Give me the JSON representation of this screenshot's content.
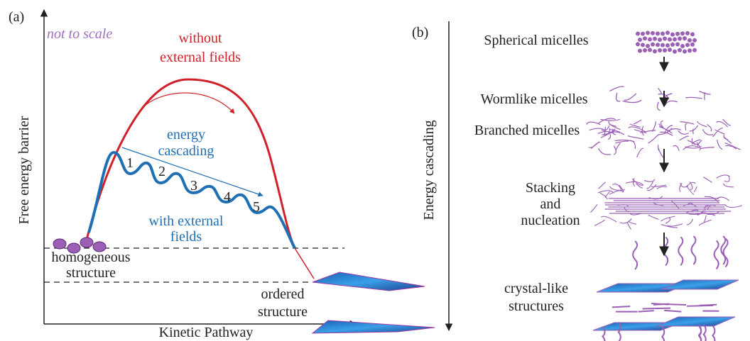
{
  "panel_a": {
    "label": "(a)",
    "note": "not to scale",
    "without_fields": [
      "without",
      "external fields"
    ],
    "cascading": [
      "energy",
      "cascading"
    ],
    "steps": [
      "1",
      "2",
      "3",
      "4",
      "5"
    ],
    "with_fields": [
      "with external",
      "fields"
    ],
    "homogeneous": [
      "homogeneous",
      "structure"
    ],
    "ordered": [
      "ordered",
      "structure"
    ],
    "y_axis": "Free energy barrier",
    "x_axis": "Kinetic Pathway"
  },
  "panel_b": {
    "label": "(b)",
    "axis": "Energy cascading",
    "stages": [
      [
        "Spherical micelles"
      ],
      [
        "Wormlike micelles"
      ],
      [
        "Branched micelles"
      ],
      [
        "Stacking",
        "and",
        "nucleation"
      ],
      [
        "crystal-like",
        "structures"
      ]
    ]
  }
}
